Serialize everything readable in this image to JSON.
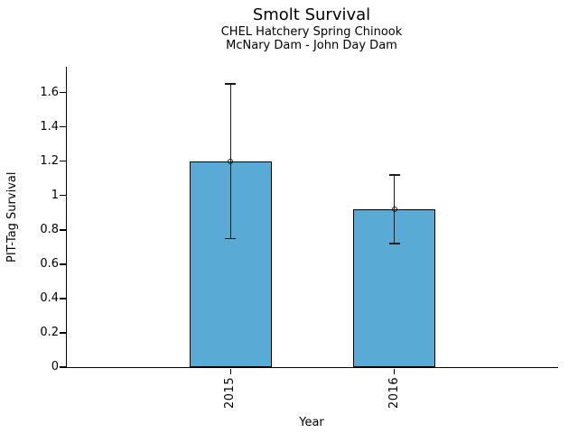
{
  "chart_data": {
    "type": "bar",
    "title": "Smolt Survival",
    "subtitle_line1": "CHEL Hatchery Spring Chinook",
    "subtitle_line2": "McNary Dam - John Day Dam",
    "xlabel": "Year",
    "ylabel": "PIT-Tag Survival",
    "categories": [
      "2015",
      "2016"
    ],
    "values": [
      1.2,
      0.92
    ],
    "error_low": [
      0.75,
      0.72
    ],
    "error_high": [
      1.65,
      1.12
    ],
    "ylim": [
      0,
      1.75
    ],
    "yticks": [
      0,
      0.2,
      0.4,
      0.6,
      0.8,
      1,
      1.2,
      1.4,
      1.6
    ],
    "ytick_labels": [
      "0",
      "0.2",
      "0.4",
      "0.6",
      "0.8",
      "1",
      "1.2",
      "1.4",
      "1.6"
    ],
    "grid": false,
    "legend": "none",
    "bar_color": "#59ABD5",
    "bar_edge_color": "#000000",
    "error_color": "#1a1a1a",
    "marker": "open-circle"
  }
}
